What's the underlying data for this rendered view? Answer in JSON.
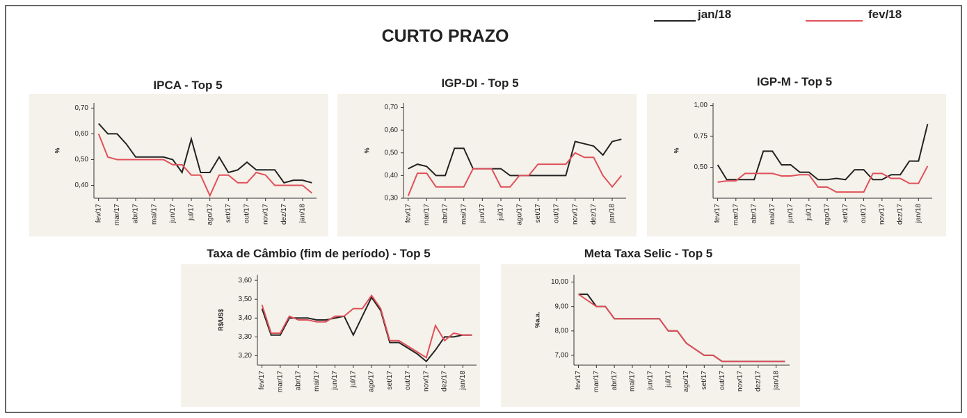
{
  "title": "CURTO PRAZO",
  "chart_data": [
    {
      "type": "line",
      "title": "IPCA - Top 5",
      "y_label": "%",
      "categories": [
        "fev/17",
        null,
        "mar/17",
        null,
        "abr/17",
        null,
        "mai/17",
        null,
        "jun/17",
        null,
        "jul/17",
        null,
        "ago/17",
        null,
        "set/17",
        null,
        "out/17",
        null,
        "nov/17",
        null,
        "dez/17",
        null,
        "jan/18",
        null
      ],
      "series": [
        {
          "name": "jan/18",
          "color": "#222222",
          "values": [
            0.64,
            0.6,
            0.6,
            0.56,
            0.51,
            0.51,
            0.51,
            0.51,
            0.5,
            0.45,
            0.58,
            0.45,
            0.45,
            0.51,
            0.45,
            0.46,
            0.49,
            0.46,
            0.46,
            0.46,
            0.41,
            0.42,
            0.42,
            0.41
          ]
        },
        {
          "name": "fev/18",
          "color": "#e0505a",
          "values": [
            0.6,
            0.51,
            0.5,
            0.5,
            0.5,
            0.5,
            0.5,
            0.5,
            0.48,
            0.48,
            0.44,
            0.44,
            0.36,
            0.44,
            0.44,
            0.41,
            0.41,
            0.45,
            0.44,
            0.4,
            0.4,
            0.4,
            0.4,
            0.37
          ]
        }
      ],
      "ylim": [
        0.35,
        0.72
      ],
      "yticks": [
        {
          "value": 0.4,
          "label": "0,40"
        },
        {
          "value": 0.5,
          "label": "0,50"
        },
        {
          "value": 0.6,
          "label": "0,60"
        },
        {
          "value": 0.7,
          "label": "0,70"
        }
      ]
    },
    {
      "type": "line",
      "title": "IGP-DI - Top 5",
      "y_label": "%",
      "categories": [
        "fev/17",
        null,
        "mar/17",
        null,
        "abr/17",
        null,
        "mai/17",
        null,
        "jun/17",
        null,
        "jul/17",
        null,
        "ago/17",
        null,
        "set/17",
        null,
        "out/17",
        null,
        "nov/17",
        null,
        "dez/17",
        null,
        "jan/18",
        null
      ],
      "series": [
        {
          "name": "jan/18",
          "color": "#222222",
          "values": [
            0.43,
            0.45,
            0.44,
            0.4,
            0.4,
            0.52,
            0.52,
            0.43,
            0.43,
            0.43,
            0.43,
            0.4,
            0.4,
            0.4,
            0.4,
            0.4,
            0.4,
            0.4,
            0.55,
            0.54,
            0.53,
            0.49,
            0.55,
            0.56
          ]
        },
        {
          "name": "fev/18",
          "color": "#e0505a",
          "values": [
            0.31,
            0.41,
            0.41,
            0.35,
            0.35,
            0.35,
            0.35,
            0.43,
            0.43,
            0.43,
            0.35,
            0.35,
            0.4,
            0.4,
            0.45,
            0.45,
            0.45,
            0.45,
            0.5,
            0.48,
            0.48,
            0.4,
            0.35,
            0.4
          ]
        }
      ],
      "ylim": [
        0.3,
        0.72
      ],
      "yticks": [
        {
          "value": 0.3,
          "label": "0,30"
        },
        {
          "value": 0.4,
          "label": "0,40"
        },
        {
          "value": 0.5,
          "label": "0,50"
        },
        {
          "value": 0.6,
          "label": "0,60"
        },
        {
          "value": 0.7,
          "label": "0,70"
        }
      ]
    },
    {
      "type": "line",
      "title": "IGP-M - Top 5",
      "y_label": "%",
      "categories": [
        "fev/17",
        null,
        "mar/17",
        null,
        "abr/17",
        null,
        "mai/17",
        null,
        "jun/17",
        null,
        "jul/17",
        null,
        "ago/17",
        null,
        "set/17",
        null,
        "out/17",
        null,
        "nov/17",
        null,
        "dez/17",
        null,
        "jan/18",
        null
      ],
      "series": [
        {
          "name": "jan/18",
          "color": "#222222",
          "values": [
            0.52,
            0.4,
            0.4,
            0.4,
            0.4,
            0.63,
            0.63,
            0.52,
            0.52,
            0.46,
            0.46,
            0.4,
            0.4,
            0.41,
            0.4,
            0.48,
            0.48,
            0.4,
            0.4,
            0.44,
            0.44,
            0.55,
            0.55,
            0.85
          ]
        },
        {
          "name": "fev/18",
          "color": "#e0505a",
          "values": [
            0.38,
            0.39,
            0.39,
            0.45,
            0.45,
            0.45,
            0.45,
            0.43,
            0.43,
            0.44,
            0.44,
            0.34,
            0.34,
            0.3,
            0.3,
            0.3,
            0.3,
            0.45,
            0.45,
            0.41,
            0.41,
            0.37,
            0.37,
            0.51
          ]
        }
      ],
      "ylim": [
        0.25,
        1.02
      ],
      "yticks": [
        {
          "value": 0.5,
          "label": "0,50"
        },
        {
          "value": 0.75,
          "label": "0,75"
        },
        {
          "value": 1.0,
          "label": "1,00"
        }
      ]
    },
    {
      "type": "line",
      "title": "Taxa de Câmbio (fim de período) - Top 5",
      "y_label": "R$/US$",
      "categories": [
        "fev/17",
        null,
        "mar/17",
        null,
        "abr/17",
        null,
        "mai/17",
        null,
        "jun/17",
        null,
        "jul/17",
        null,
        "ago/17",
        null,
        "set/17",
        null,
        "out/17",
        null,
        "nov/17",
        null,
        "dez/17",
        null,
        "jan/18",
        null
      ],
      "series": [
        {
          "name": "jan/18",
          "color": "#222222",
          "values": [
            3.45,
            3.31,
            3.31,
            3.4,
            3.4,
            3.4,
            3.39,
            3.39,
            3.4,
            3.41,
            3.31,
            3.41,
            3.51,
            3.44,
            3.27,
            3.27,
            3.24,
            3.21,
            3.17,
            3.23,
            3.3,
            3.3,
            3.31,
            3.31
          ]
        },
        {
          "name": "fev/18",
          "color": "#e0505a",
          "values": [
            3.47,
            3.32,
            3.32,
            3.41,
            3.39,
            3.39,
            3.38,
            3.38,
            3.41,
            3.41,
            3.45,
            3.45,
            3.52,
            3.45,
            3.28,
            3.28,
            3.25,
            3.22,
            3.19,
            3.36,
            3.28,
            3.32,
            3.31,
            3.31
          ]
        }
      ],
      "ylim": [
        3.15,
        3.63
      ],
      "yticks": [
        {
          "value": 3.2,
          "label": "3,20"
        },
        {
          "value": 3.3,
          "label": "3,30"
        },
        {
          "value": 3.4,
          "label": "3,40"
        },
        {
          "value": 3.5,
          "label": "3,50"
        },
        {
          "value": 3.6,
          "label": "3,60"
        }
      ]
    },
    {
      "type": "line",
      "title": "Meta Taxa Selic - Top 5",
      "y_label": "%a.a.",
      "categories": [
        "fev/17",
        null,
        "mar/17",
        null,
        "abr/17",
        null,
        "mai/17",
        null,
        "jun/17",
        null,
        "jul/17",
        null,
        "ago/17",
        null,
        "set/17",
        null,
        "out/17",
        null,
        "nov/17",
        null,
        "dez/17",
        null,
        "jan/18",
        null
      ],
      "series": [
        {
          "name": "jan/18",
          "color": "#222222",
          "values": [
            9.5,
            9.5,
            9.0,
            9.0,
            8.5,
            8.5,
            8.5,
            8.5,
            8.5,
            8.5,
            8.0,
            8.0,
            7.5,
            7.25,
            7.0,
            7.0,
            6.75,
            6.75,
            6.75,
            6.75,
            6.75,
            6.75,
            6.75,
            6.75
          ]
        },
        {
          "name": "fev/18",
          "color": "#e0505a",
          "values": [
            9.5,
            9.25,
            9.0,
            9.0,
            8.5,
            8.5,
            8.5,
            8.5,
            8.5,
            8.5,
            8.0,
            8.0,
            7.5,
            7.25,
            7.0,
            7.0,
            6.75,
            6.75,
            6.75,
            6.75,
            6.75,
            6.75,
            6.75,
            6.75
          ]
        }
      ],
      "ylim": [
        6.6,
        10.3
      ],
      "yticks": [
        {
          "value": 7,
          "label": "7,00"
        },
        {
          "value": 8,
          "label": "8,00"
        },
        {
          "value": 9,
          "label": "9,00"
        },
        {
          "value": 10,
          "label": "10,00"
        }
      ]
    }
  ]
}
